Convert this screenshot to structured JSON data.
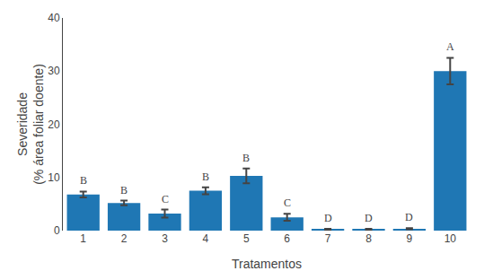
{
  "chart_data": {
    "type": "bar",
    "xlabel": "Tratamentos",
    "ylabel": "Severidade\n(% área foliar doente)",
    "categories": [
      "1",
      "2",
      "3",
      "4",
      "5",
      "6",
      "7",
      "8",
      "9",
      "10"
    ],
    "values": [
      6.8,
      5.2,
      3.2,
      7.5,
      10.3,
      2.5,
      0.25,
      0.25,
      0.35,
      30.0
    ],
    "errors": [
      0.55,
      0.45,
      0.75,
      0.65,
      1.4,
      0.65,
      0.08,
      0.08,
      0.1,
      2.5
    ],
    "annotations": [
      {
        "category": "1",
        "text": "B"
      },
      {
        "category": "2",
        "text": "B"
      },
      {
        "category": "3",
        "text": "C"
      },
      {
        "category": "4",
        "text": "B"
      },
      {
        "category": "5",
        "text": "B"
      },
      {
        "category": "6",
        "text": "C"
      },
      {
        "category": "7",
        "text": "D"
      },
      {
        "category": "8",
        "text": "D"
      },
      {
        "category": "9",
        "text": "D"
      },
      {
        "category": "10",
        "text": "A"
      }
    ],
    "ylim": [
      0,
      40
    ],
    "yticks": [
      0,
      10,
      20,
      30,
      40
    ],
    "grid": false
  }
}
